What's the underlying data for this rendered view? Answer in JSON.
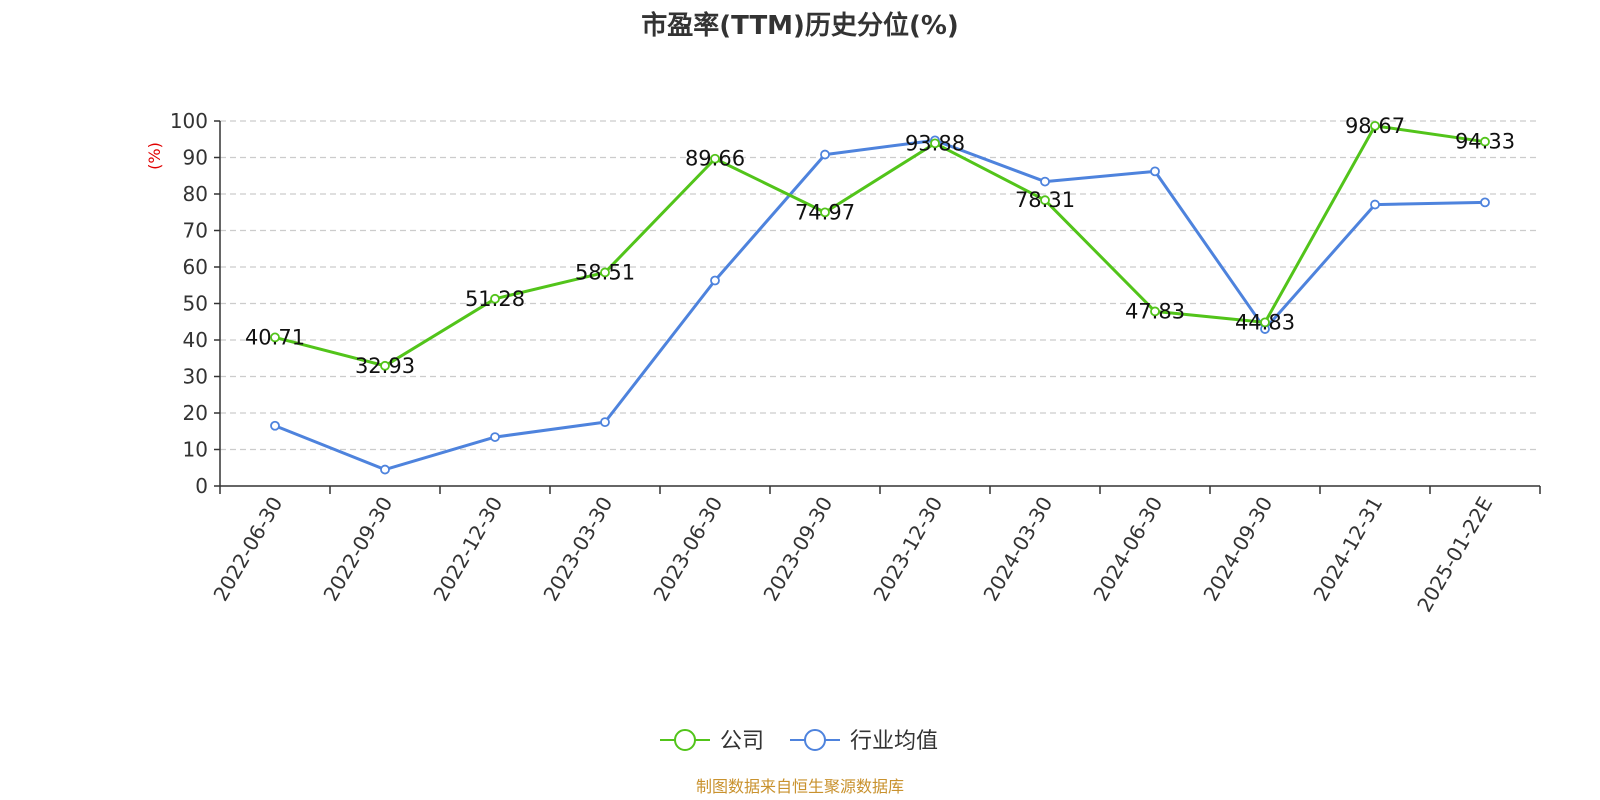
{
  "chart_data": {
    "type": "line",
    "title": "市盈率(TTM)历史分位(%)",
    "y_unit": "(%)",
    "ylim": [
      0,
      100
    ],
    "yticks": [
      0,
      10,
      20,
      30,
      40,
      50,
      60,
      70,
      80,
      90,
      100
    ],
    "grid": true,
    "legend_placement": "bottom",
    "categories": [
      "2022-06-30",
      "2022-09-30",
      "2022-12-30",
      "2023-03-30",
      "2023-06-30",
      "2023-09-30",
      "2023-12-30",
      "2024-03-30",
      "2024-06-30",
      "2024-09-30",
      "2024-12-31",
      "2025-01-22E"
    ],
    "series": [
      {
        "name": "公司",
        "color": "#52c41a",
        "values": [
          40.71,
          32.93,
          51.28,
          58.51,
          89.66,
          74.97,
          93.88,
          78.31,
          47.83,
          44.83,
          98.67,
          94.33
        ],
        "labels": [
          "40.71",
          "32.93",
          "51.28",
          "58.51",
          "89.66",
          "74.97",
          "93.88",
          "78.31",
          "47.83",
          "44.83",
          "98.67",
          "94.33"
        ]
      },
      {
        "name": "行业均值",
        "color": "#4e83dd",
        "values": [
          16.5,
          4.5,
          13.4,
          17.5,
          56.3,
          90.8,
          94.7,
          83.4,
          86.2,
          43.0,
          77.1,
          77.7
        ]
      }
    ]
  },
  "source": "制图数据来自恒生聚源数据库",
  "colors": {
    "unit_label": "#e00000",
    "source_text": "#c9922e",
    "axis": "#333333",
    "grid": "#cccccc"
  }
}
